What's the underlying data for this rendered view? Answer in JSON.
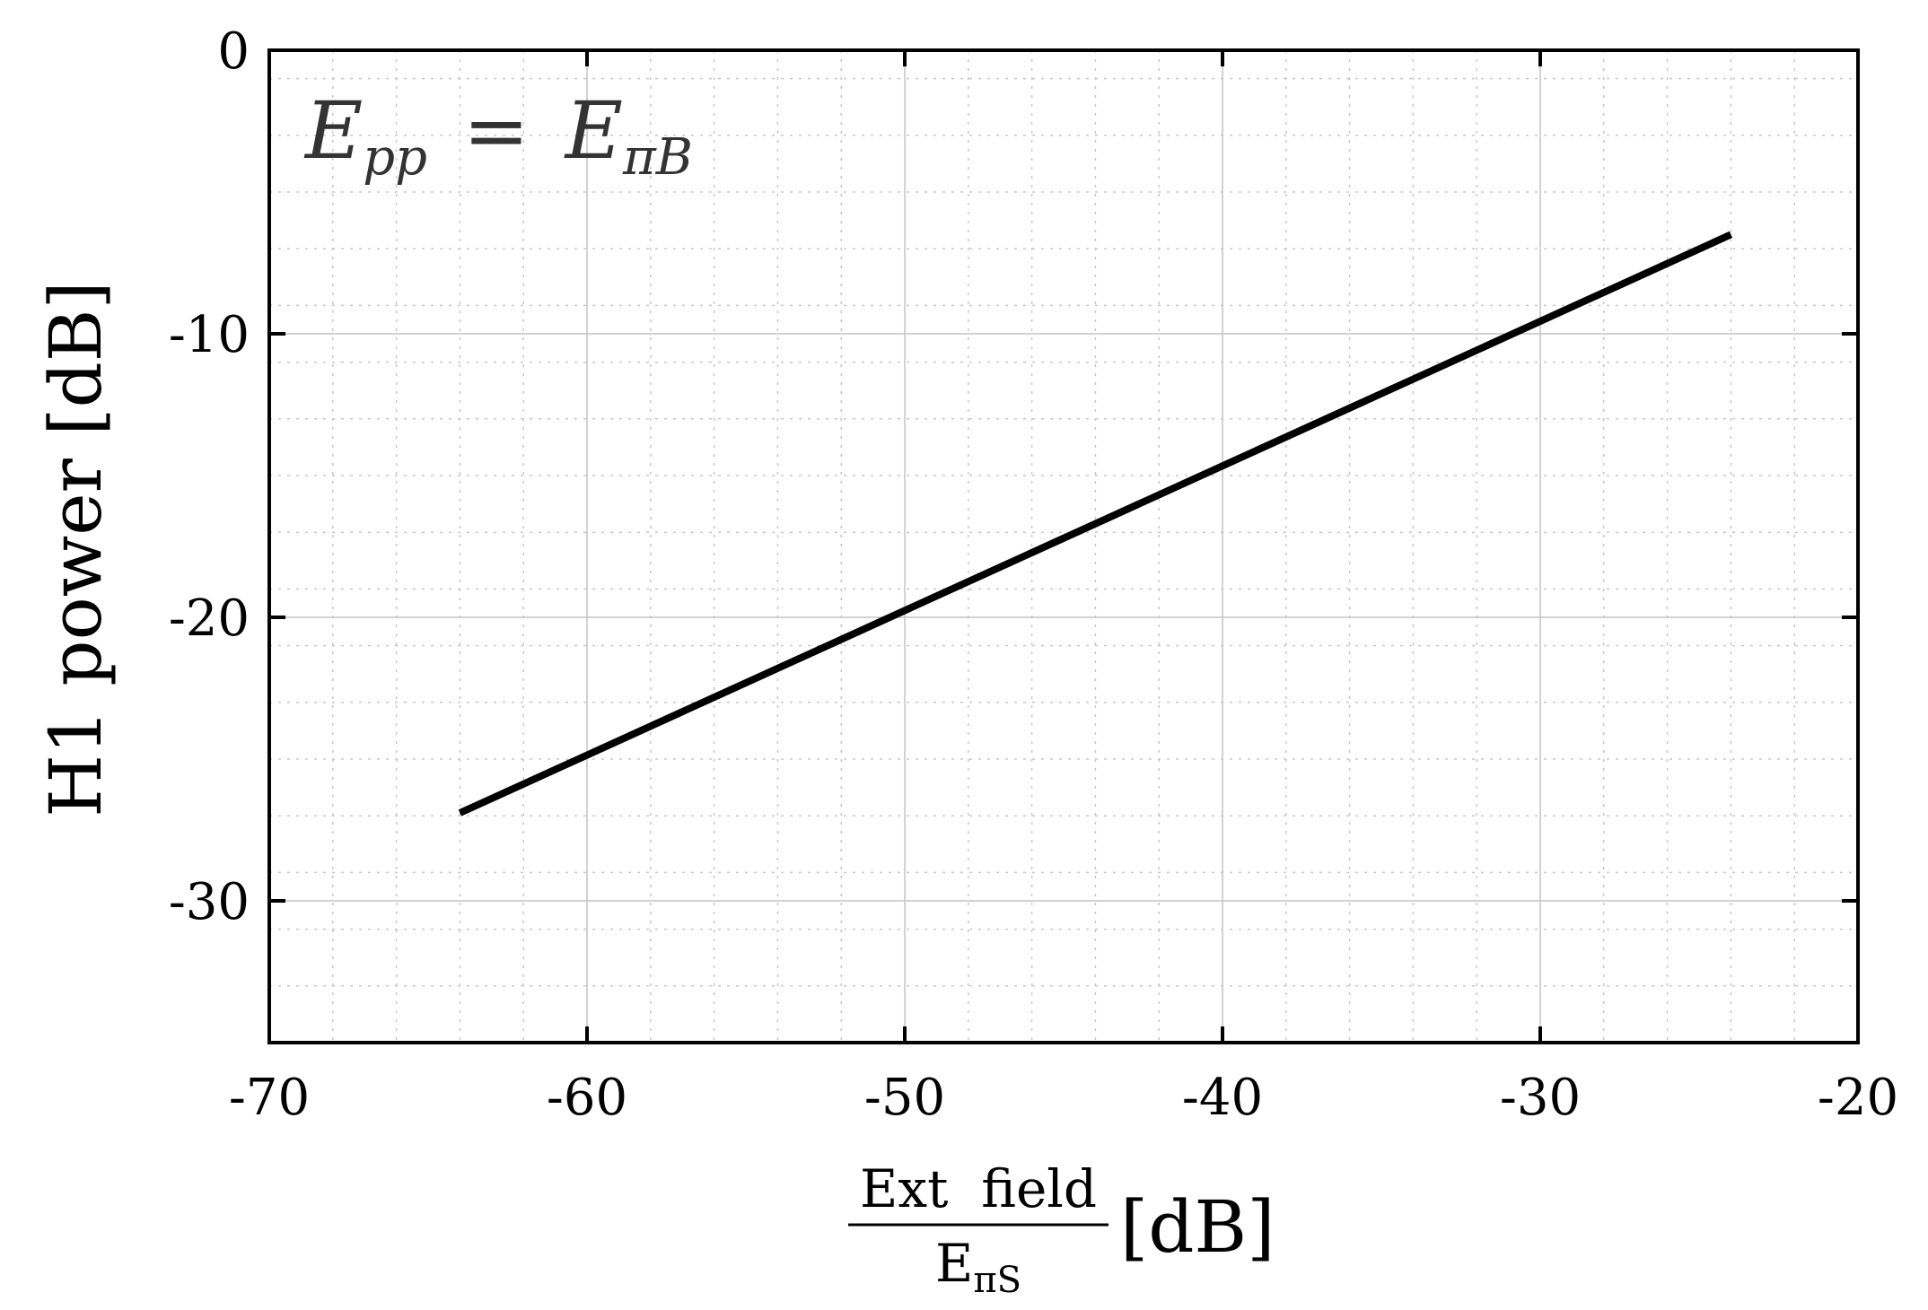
{
  "chart_data": {
    "type": "line",
    "xlabel": {
      "numerator": "Ext  field",
      "denominator_main": "E",
      "denominator_sub": "πS",
      "unit": "[dB]"
    },
    "ylabel": "H1 power [dB]",
    "annotation": {
      "lhs_main": "E",
      "lhs_sub": "pp",
      "equals": "=",
      "rhs_main": "E",
      "rhs_sub": "πB"
    },
    "xlim": [
      -70,
      -20
    ],
    "ylim": [
      -35,
      0
    ],
    "xticks": [
      -70,
      -60,
      -50,
      -40,
      -30,
      -20
    ],
    "xtick_labels": [
      "-70",
      "-60",
      "-50",
      "-40",
      "-30",
      "-20"
    ],
    "yticks": [
      0,
      -10,
      -20,
      -30
    ],
    "ytick_labels": [
      "0",
      "-10",
      "-20",
      "-30"
    ],
    "grid": true,
    "minor_grid": true,
    "series": [
      {
        "color": "#000000",
        "x": [
          -64,
          -24
        ],
        "y": [
          -26.9,
          -6.5
        ]
      }
    ]
  }
}
